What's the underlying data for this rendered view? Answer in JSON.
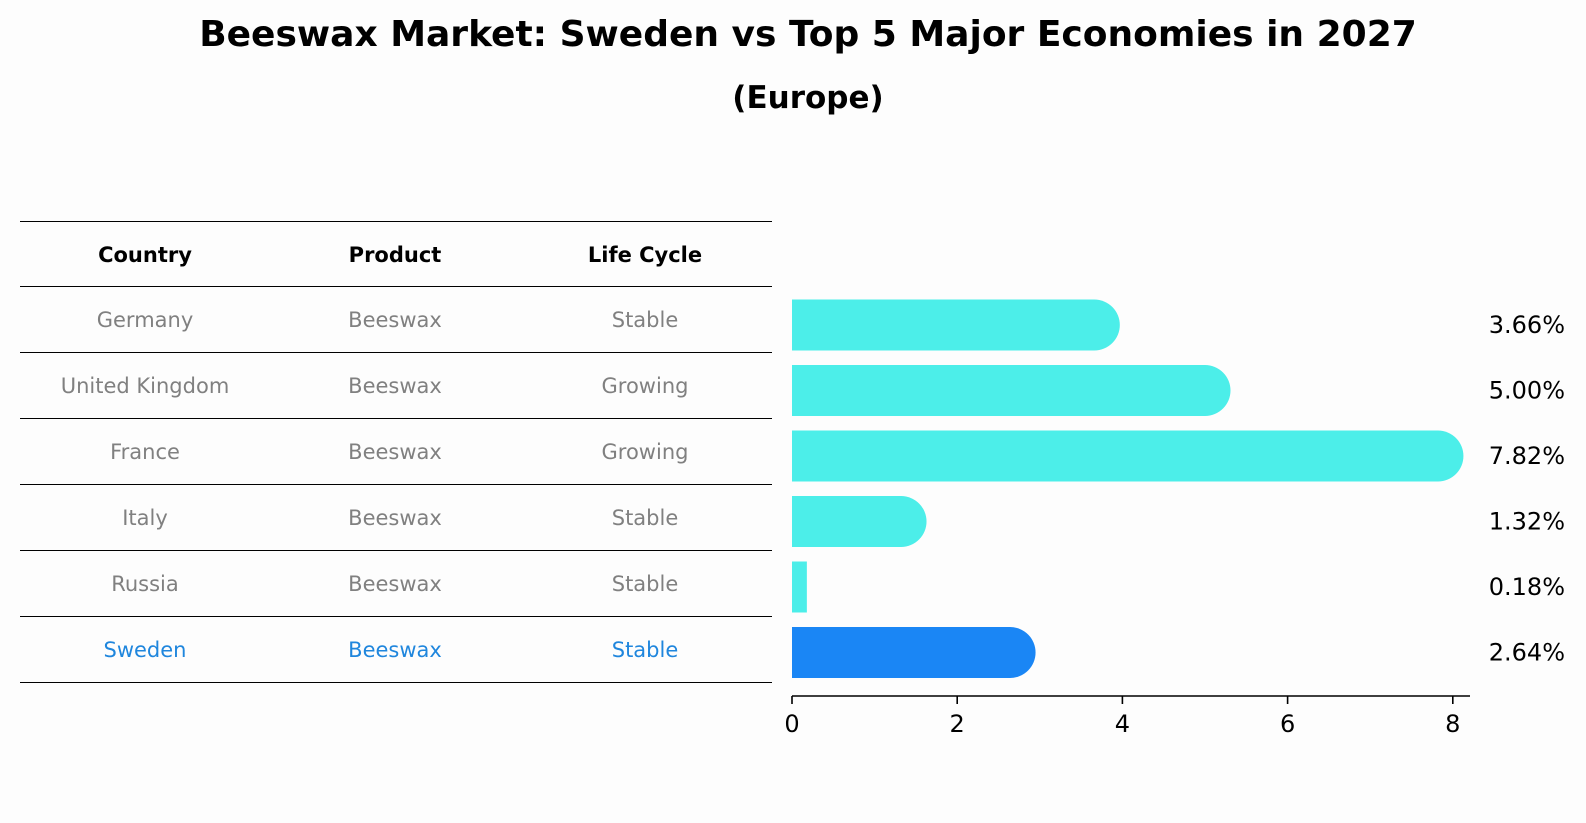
{
  "title": "Beeswax Market: Sweden vs Top 5 Major Economies in 2027",
  "subtitle": "(Europe)",
  "table": {
    "headers": [
      "Country",
      "Product",
      "Life Cycle"
    ],
    "rows": [
      {
        "country": "Germany",
        "product": "Beeswax",
        "life_cycle": "Stable"
      },
      {
        "country": "United Kingdom",
        "product": "Beeswax",
        "life_cycle": "Growing"
      },
      {
        "country": "France",
        "product": "Beeswax",
        "life_cycle": "Growing"
      },
      {
        "country": "Italy",
        "product": "Beeswax",
        "life_cycle": "Stable"
      },
      {
        "country": "Russia",
        "product": "Beeswax",
        "life_cycle": "Stable"
      },
      {
        "country": "Sweden",
        "product": "Beeswax",
        "life_cycle": "Stable"
      }
    ]
  },
  "chart_data": {
    "type": "bar",
    "orientation": "horizontal",
    "categories": [
      "Germany",
      "United Kingdom",
      "France",
      "Italy",
      "Russia",
      "Sweden"
    ],
    "values": [
      3.66,
      5.0,
      7.82,
      1.32,
      0.18,
      2.64
    ],
    "value_labels": [
      "3.66%",
      "5.00%",
      "7.82%",
      "1.32%",
      "0.18%",
      "2.64%"
    ],
    "highlight": "Sweden",
    "xlim": [
      0,
      8.2
    ],
    "xticks": [
      0,
      2,
      4,
      6,
      8
    ],
    "grid": false,
    "colors": {
      "bar": "#4ceee9",
      "highlight": "#1a86f5",
      "axis": "#000000",
      "text": "#000000"
    }
  }
}
